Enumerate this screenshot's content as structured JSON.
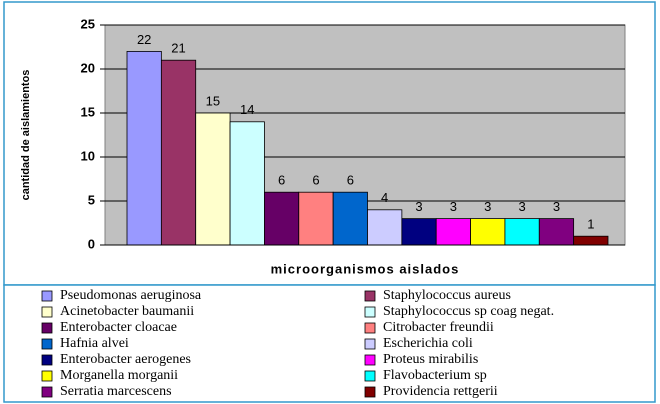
{
  "chart_data": {
    "type": "bar",
    "x_label": "microorganismos aislados",
    "y_label": "cantidad de aislamientos",
    "categories": [
      "Pseudomonas aeruginosa",
      "Staphylococcus aureus",
      "Acinetobacter baumanii",
      "Staphylococcus sp coag negat.",
      "Enterobacter cloacae",
      "Citrobacter freundii",
      "Hafnia alvei",
      "Escherichia coli",
      "Enterobacter aerogenes",
      "Proteus mirabilis",
      "Morganella morganii",
      "Flavobacterium sp",
      "Serratia marcescens",
      "Providencia rettgerii"
    ],
    "values": [
      22,
      21,
      15,
      14,
      6,
      6,
      6,
      4,
      3,
      3,
      3,
      3,
      3,
      1
    ],
    "colors": [
      "#9999ff",
      "#993366",
      "#ffffcc",
      "#ccffff",
      "#660066",
      "#ff8080",
      "#0066cc",
      "#ccccff",
      "#000080",
      "#ff00ff",
      "#ffff00",
      "#00ffff",
      "#800080",
      "#800000"
    ],
    "ylim": [
      0,
      25
    ],
    "yticks": [
      0,
      5,
      10,
      15,
      20,
      25
    ],
    "grid": true,
    "legend": "bottom"
  }
}
